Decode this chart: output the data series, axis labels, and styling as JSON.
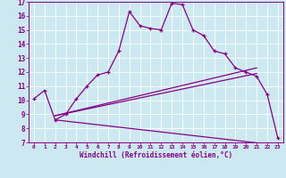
{
  "xlabel": "Windchill (Refroidissement éolien,°C)",
  "bg_color": "#cce8f0",
  "line_color": "#880088",
  "xlim": [
    -0.5,
    23.5
  ],
  "ylim": [
    7,
    17
  ],
  "yticks": [
    7,
    8,
    9,
    10,
    11,
    12,
    13,
    14,
    15,
    16,
    17
  ],
  "xticks": [
    0,
    1,
    2,
    3,
    4,
    5,
    6,
    7,
    8,
    9,
    10,
    11,
    12,
    13,
    14,
    15,
    16,
    17,
    18,
    19,
    20,
    21,
    22,
    23
  ],
  "curve1_x": [
    0,
    1,
    2,
    3,
    4,
    5,
    6,
    7,
    8,
    9,
    10,
    11,
    12,
    13,
    14,
    15,
    16,
    17,
    18,
    19,
    20,
    21,
    22,
    23
  ],
  "curve1_y": [
    10.1,
    10.7,
    8.6,
    9.0,
    10.1,
    11.0,
    11.8,
    12.0,
    13.5,
    16.3,
    15.3,
    15.1,
    15.0,
    16.9,
    16.8,
    15.0,
    14.6,
    13.5,
    13.3,
    12.3,
    12.0,
    11.7,
    10.4,
    7.3
  ],
  "line1_x": [
    2,
    21
  ],
  "line1_y": [
    8.9,
    12.3
  ],
  "line2_x": [
    2,
    21
  ],
  "line2_y": [
    8.9,
    11.9
  ],
  "line3_x": [
    2,
    23
  ],
  "line3_y": [
    8.6,
    6.8
  ]
}
